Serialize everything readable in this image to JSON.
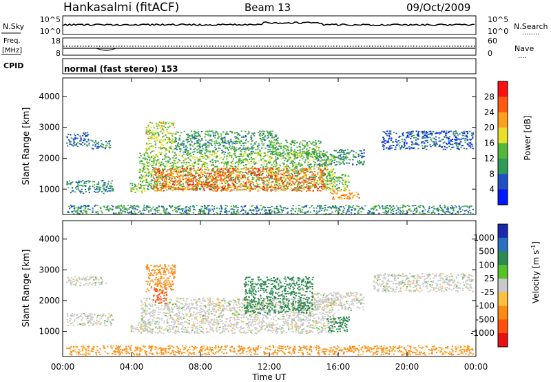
{
  "header": {
    "station": "Hankasalmi (fitACF)",
    "beam": "Beam 13",
    "date": "09/Oct/2009"
  },
  "nsky_panel": {
    "left_label": "N.Sky",
    "left_ticks": [
      "10^5",
      "10^0"
    ],
    "right_ticks": [
      "10^5",
      "10^0"
    ],
    "right_label": "N.Search",
    "right_legend": "........"
  },
  "freq_panel": {
    "left_label_1": "Freq.",
    "left_label_2": "[MHz]",
    "left_ticks": [
      "18",
      "8"
    ],
    "right_ticks": [
      "60",
      "0"
    ],
    "right_label": "Nave",
    "right_legend": "....",
    "cpid_label": "CPID",
    "cpid_text": "normal (fast stereo) 153"
  },
  "chart_data": [
    {
      "type": "heatmap",
      "title": "",
      "xlabel": "",
      "ylabel": "Slant Range [km]",
      "x_unit": "hours UT",
      "xlim": [
        0,
        24
      ],
      "ylim": [
        180,
        4600
      ],
      "yticks": [
        "1000",
        "2000",
        "3000",
        "4000"
      ],
      "colorbar_label": "Power [dB]",
      "colorbar_ticks": [
        "28",
        "24",
        "20",
        "16",
        "12",
        "8",
        "4"
      ],
      "colors": [
        "#0018ff",
        "#2050c8",
        "#2e9a55",
        "#55b83a",
        "#e8e02a",
        "#ffa01a",
        "#ff5a10",
        "#ff1010"
      ],
      "regions": [
        {
          "x": [
            0.2,
            2.9
          ],
          "y": [
            880,
            1300
          ],
          "value": 9
        },
        {
          "x": [
            0.2,
            1.5
          ],
          "y": [
            2400,
            2850
          ],
          "value": 7
        },
        {
          "x": [
            1.6,
            2.8
          ],
          "y": [
            2300,
            2600
          ],
          "value": 9
        },
        {
          "x": [
            3.9,
            4.8
          ],
          "y": [
            880,
            1200
          ],
          "value": 15
        },
        {
          "x": [
            4.4,
            15.8
          ],
          "y": [
            980,
            2200
          ],
          "value": 14
        },
        {
          "x": [
            5.2,
            15.2
          ],
          "y": [
            950,
            1700
          ],
          "value": 25
        },
        {
          "x": [
            4.8,
            6.5
          ],
          "y": [
            2200,
            3200
          ],
          "value": 16
        },
        {
          "x": [
            6.5,
            12.5
          ],
          "y": [
            2200,
            2900
          ],
          "value": 11
        },
        {
          "x": [
            12.0,
            15.0
          ],
          "y": [
            2000,
            2600
          ],
          "value": 13
        },
        {
          "x": [
            14.8,
            17.5
          ],
          "y": [
            1800,
            2300
          ],
          "value": 10
        },
        {
          "x": [
            15.5,
            17.2
          ],
          "y": [
            700,
            1000
          ],
          "value": 23
        },
        {
          "x": [
            15.3,
            16.6
          ],
          "y": [
            1000,
            1500
          ],
          "value": 14
        },
        {
          "x": [
            18.5,
            23.8
          ],
          "y": [
            2300,
            2900
          ],
          "value": 6
        },
        {
          "x": [
            0.2,
            23.8
          ],
          "y": [
            200,
            500
          ],
          "value": 10
        }
      ]
    },
    {
      "type": "heatmap",
      "title": "",
      "xlabel": "Time UT",
      "ylabel": "Slant Range [km]",
      "x_unit": "hours UT",
      "xlim": [
        0,
        24
      ],
      "ylim": [
        180,
        4600
      ],
      "xticks": [
        "00:00",
        "04:00",
        "08:00",
        "12:00",
        "16:00",
        "20:00",
        "00:00"
      ],
      "yticks": [
        "1000",
        "2000",
        "3000",
        "4000"
      ],
      "colorbar_label": "Velocity [m s^-1]",
      "colorbar_ticks": [
        "1000",
        "500",
        "100",
        "25",
        "-25",
        "-100",
        "-500",
        "-1000"
      ],
      "colors": [
        "#1a28b0",
        "#2a70c0",
        "#2e8a50",
        "#55c22a",
        "#c8c8c8",
        "#ffc040",
        "#ff8a10",
        "#ff5010",
        "#e81010"
      ],
      "regions": [
        {
          "x": [
            0.2,
            2.9
          ],
          "y": [
            1200,
            1600
          ],
          "value": 0
        },
        {
          "x": [
            0.2,
            2.5
          ],
          "y": [
            2500,
            2800
          ],
          "value": 0
        },
        {
          "x": [
            3.9,
            4.8
          ],
          "y": [
            1000,
            1300
          ],
          "value": 0
        },
        {
          "x": [
            4.5,
            15.8
          ],
          "y": [
            950,
            2100
          ],
          "value": 0
        },
        {
          "x": [
            4.8,
            6.5
          ],
          "y": [
            2300,
            3200
          ],
          "value": -150
        },
        {
          "x": [
            5.2,
            6.0
          ],
          "y": [
            1900,
            2400
          ],
          "value": -700
        },
        {
          "x": [
            10.5,
            14.5
          ],
          "y": [
            1600,
            2800
          ],
          "value": 150
        },
        {
          "x": [
            14.5,
            17.5
          ],
          "y": [
            1700,
            2300
          ],
          "value": 0
        },
        {
          "x": [
            15.3,
            16.6
          ],
          "y": [
            1000,
            1500
          ],
          "value": 180
        },
        {
          "x": [
            18.0,
            23.8
          ],
          "y": [
            2300,
            2900
          ],
          "value": 0
        },
        {
          "x": [
            0.2,
            23.8
          ],
          "y": [
            250,
            550
          ],
          "value": -80
        }
      ]
    }
  ]
}
